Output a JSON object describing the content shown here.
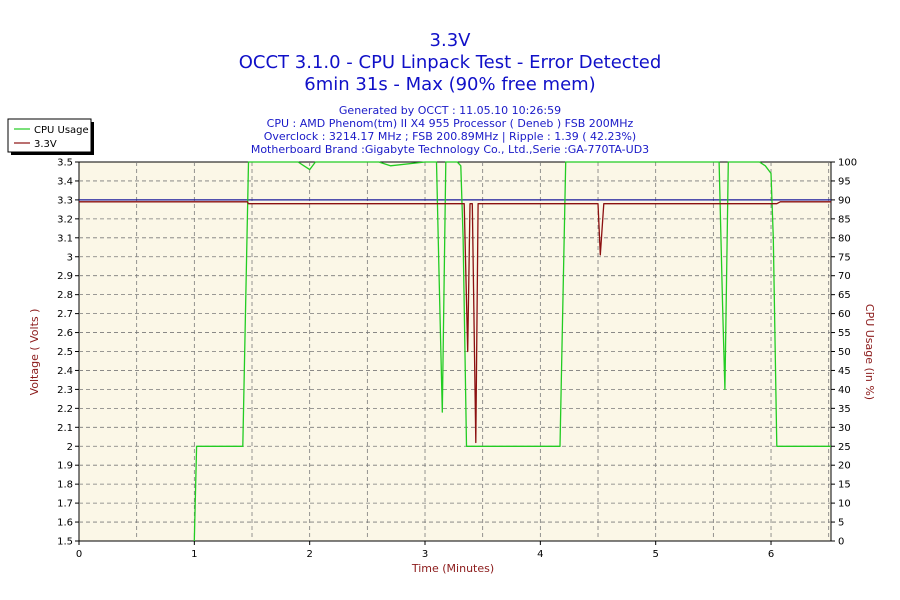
{
  "chart_data": {
    "type": "line",
    "title": "3.3V",
    "subtitle": "OCCT 3.1.0 - CPU Linpack Test - Error Detected",
    "subtitle2": "6min 31s - Max (90% free mem)",
    "info_lines": [
      "Generated by OCCT : 11.05.10 10:26:59",
      "CPU : AMD Phenom(tm) II X4 955 Processor ( Deneb ) FSB 200MHz",
      "Overclock : 3214.17 MHz ; FSB 200.89MHz | Ripple : 1.39 ( 42.23%)",
      "Motherboard Brand :Gigabyte Technology Co., Ltd.,Serie :GA-770TA-UD3"
    ],
    "xlabel": "Time (Minutes)",
    "ylabel": "Voltage ( Volts )",
    "y2label": "CPU Usage (in %)",
    "xlim": [
      0,
      6.52
    ],
    "ylim": [
      1.5,
      3.5
    ],
    "y2lim": [
      0,
      100
    ],
    "x_ticks": [
      "0",
      "1",
      "2",
      "3",
      "4",
      "5",
      "6"
    ],
    "y_ticks": [
      "1.5",
      "1.6",
      "1.7",
      "1.8",
      "1.9",
      "2",
      "2.1",
      "2.2",
      "2.3",
      "2.4",
      "2.5",
      "2.6",
      "2.7",
      "2.8",
      "2.9",
      "3",
      "3.1",
      "3.2",
      "3.3",
      "3.4",
      "3.5"
    ],
    "y2_ticks": [
      "0",
      "5",
      "10",
      "15",
      "20",
      "25",
      "30",
      "35",
      "40",
      "45",
      "50",
      "55",
      "60",
      "65",
      "70",
      "75",
      "80",
      "85",
      "90",
      "95",
      "100"
    ],
    "grid": true,
    "reference_line": {
      "value": 3.3,
      "color": "#1a1a9c"
    },
    "legend": {
      "placement": "top-left",
      "entries": [
        {
          "name": "CPU Usage",
          "color": "#22cc22"
        },
        {
          "name": "3.3V",
          "color": "#8b1010"
        }
      ]
    },
    "series": [
      {
        "name": "CPU Usage",
        "axis": "right",
        "color": "#22cc22",
        "points": [
          [
            1.0,
            0
          ],
          [
            1.02,
            25
          ],
          [
            1.42,
            25
          ],
          [
            1.47,
            100
          ],
          [
            1.5,
            100
          ],
          [
            1.9,
            100
          ],
          [
            1.95,
            99
          ],
          [
            2.0,
            98
          ],
          [
            2.05,
            100
          ],
          [
            2.6,
            100
          ],
          [
            2.7,
            99
          ],
          [
            3.0,
            100
          ],
          [
            3.1,
            100
          ],
          [
            3.12,
            72
          ],
          [
            3.15,
            34
          ],
          [
            3.18,
            100
          ],
          [
            3.28,
            100
          ],
          [
            3.31,
            99
          ],
          [
            3.33,
            80
          ],
          [
            3.36,
            25
          ],
          [
            3.5,
            25
          ],
          [
            4.0,
            25
          ],
          [
            4.17,
            25
          ],
          [
            4.22,
            100
          ],
          [
            4.5,
            100
          ],
          [
            5.5,
            100
          ],
          [
            5.55,
            100
          ],
          [
            5.58,
            62
          ],
          [
            5.6,
            40
          ],
          [
            5.63,
            100
          ],
          [
            5.9,
            100
          ],
          [
            5.95,
            99
          ],
          [
            6.0,
            97
          ],
          [
            6.02,
            80
          ],
          [
            6.05,
            25
          ],
          [
            6.52,
            25
          ]
        ]
      },
      {
        "name": "3.3V",
        "axis": "left",
        "color": "#8b1010",
        "points": [
          [
            0,
            3.29
          ],
          [
            1.46,
            3.29
          ],
          [
            1.47,
            3.28
          ],
          [
            3.3,
            3.28
          ],
          [
            3.34,
            3.28
          ],
          [
            3.37,
            2.5
          ],
          [
            3.39,
            3.28
          ],
          [
            3.41,
            3.28
          ],
          [
            3.44,
            2.02
          ],
          [
            3.46,
            3.28
          ],
          [
            4.2,
            3.28
          ],
          [
            4.5,
            3.28
          ],
          [
            4.52,
            3.01
          ],
          [
            4.55,
            3.28
          ],
          [
            6.05,
            3.28
          ],
          [
            6.08,
            3.29
          ],
          [
            6.52,
            3.29
          ]
        ]
      }
    ]
  }
}
